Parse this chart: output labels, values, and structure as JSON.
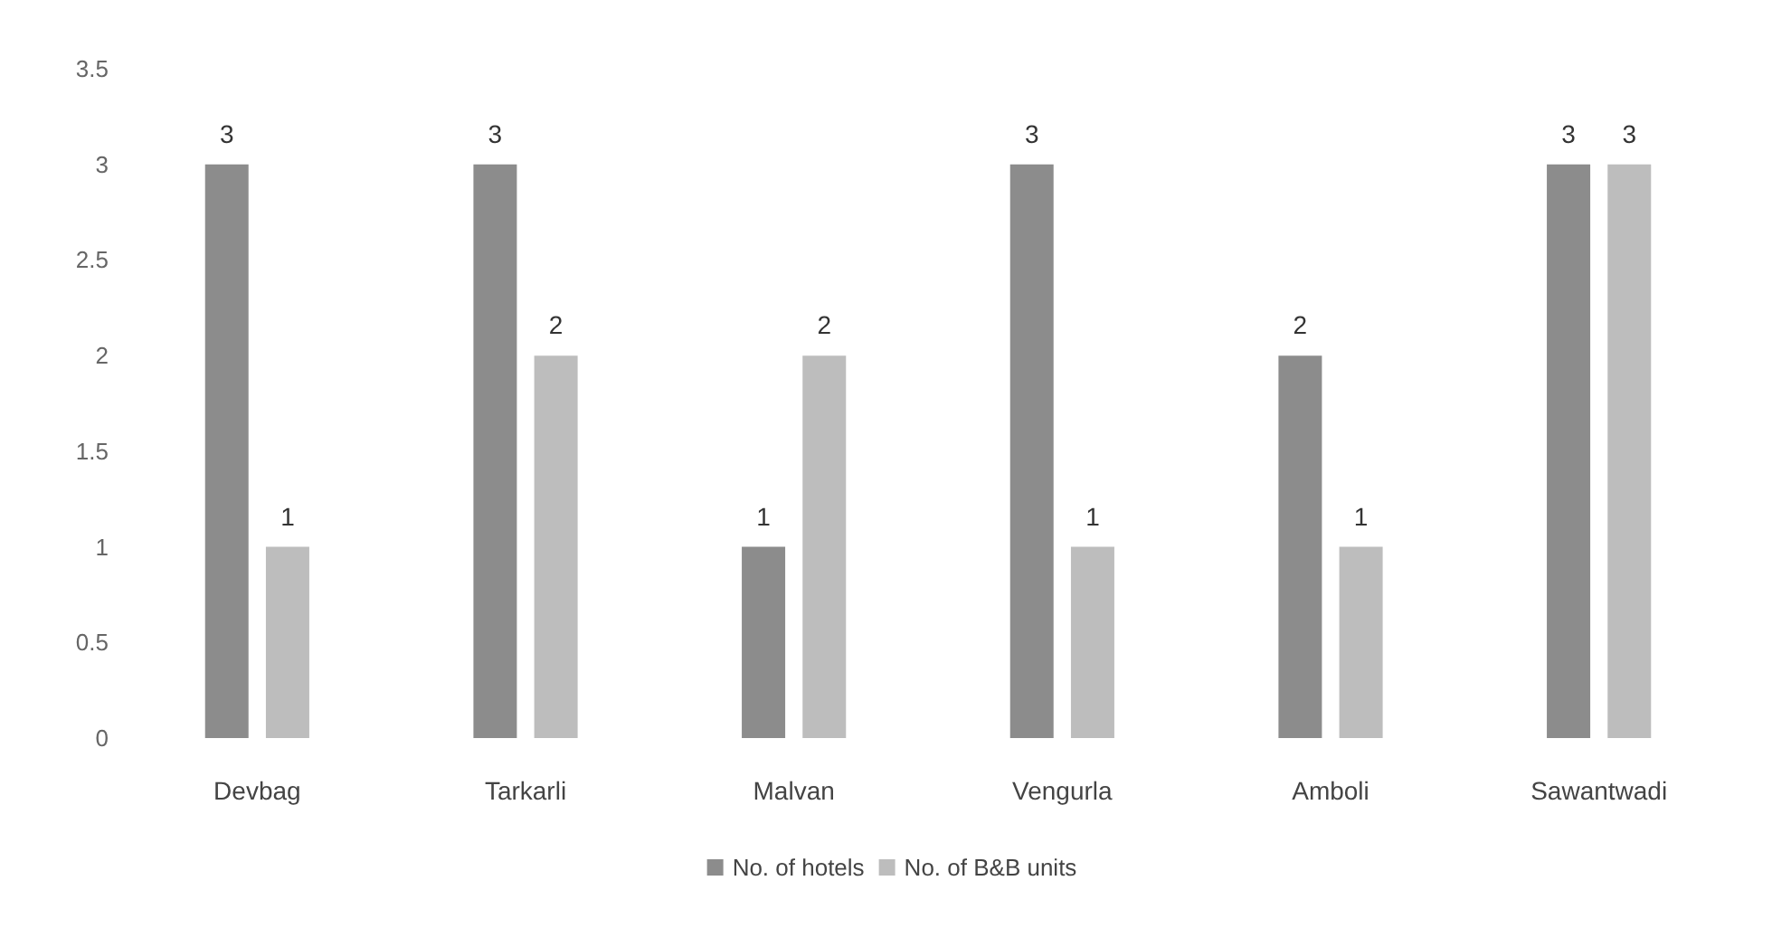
{
  "chart_data": {
    "type": "bar",
    "categories": [
      "Devbag",
      "Tarkarli",
      "Malvan",
      "Vengurla",
      "Amboli",
      "Sawantwadi"
    ],
    "series": [
      {
        "name": "No. of hotels",
        "color": "#8c8c8c",
        "values": [
          3,
          3,
          1,
          3,
          2,
          3
        ]
      },
      {
        "name": "No. of B&B units",
        "color": "#bdbdbd",
        "values": [
          1,
          2,
          2,
          1,
          1,
          3
        ]
      }
    ],
    "ylim": [
      0,
      3.5
    ],
    "yticks": [
      0,
      0.5,
      1,
      1.5,
      2,
      2.5,
      3,
      3.5
    ],
    "grid": false,
    "legend": "bottom",
    "data_labels": true
  }
}
